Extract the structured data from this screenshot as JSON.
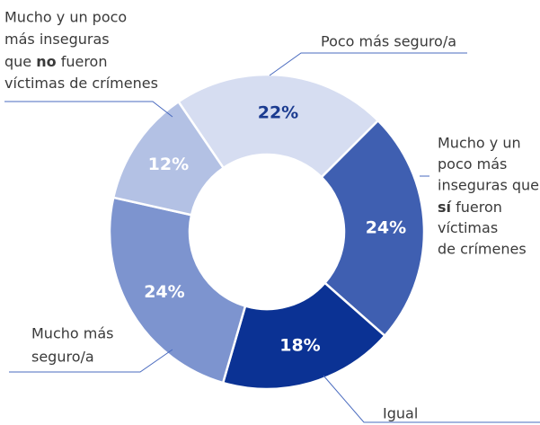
{
  "chart_data": {
    "type": "donut",
    "categories": [
      [
        "Poco más seguro/a"
      ],
      [
        "Mucho y un",
        "poco más",
        "inseguras que",
        [
          {
            "bold": "sí"
          },
          " fueron"
        ],
        "víctimas",
        "de crímenes"
      ],
      [
        "Igual"
      ],
      [
        "Mucho más",
        "seguro/a"
      ],
      [
        "Mucho y un poco",
        "más inseguras",
        [
          "que ",
          {
            "bold": "no"
          },
          " fueron"
        ],
        "víctimas de crímenes"
      ]
    ],
    "values": [
      22,
      24,
      18,
      24,
      12
    ],
    "value_labels": [
      "22%",
      "24%",
      "18%",
      "24%",
      "12%"
    ],
    "colors": [
      "#d6ddf1",
      "#3f5fb1",
      "#0b3294",
      "#7d94cf",
      "#b3c1e4"
    ]
  }
}
